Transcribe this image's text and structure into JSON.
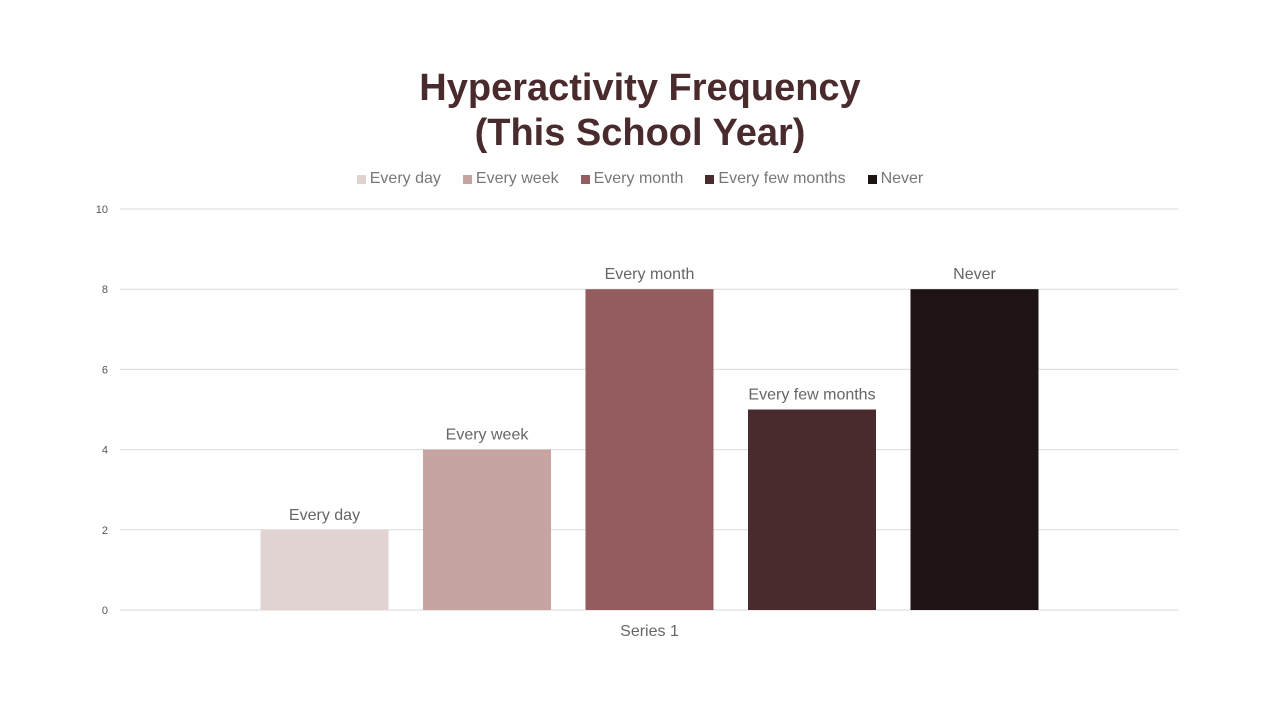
{
  "chart_data": {
    "type": "bar",
    "title_lines": [
      "Hyperactivity Frequency",
      "(This School Year)"
    ],
    "categories": [
      "Series 1"
    ],
    "series": [
      {
        "name": "Every day",
        "values": [
          2
        ],
        "color": "#e0d3d2"
      },
      {
        "name": "Every week",
        "values": [
          4
        ],
        "color": "#c6a4a2"
      },
      {
        "name": "Every month",
        "values": [
          8
        ],
        "color": "#935c5e"
      },
      {
        "name": "Every few months",
        "values": [
          5
        ],
        "color": "#4a2b2d"
      },
      {
        "name": "Never",
        "values": [
          8
        ],
        "color": "#1e1413"
      }
    ],
    "yticks": [
      "0",
      "2",
      "4",
      "6",
      "8",
      "10"
    ],
    "ylim": [
      0,
      10
    ],
    "xlabel": "",
    "ylabel": "",
    "grid": true,
    "legend_position": "top"
  }
}
